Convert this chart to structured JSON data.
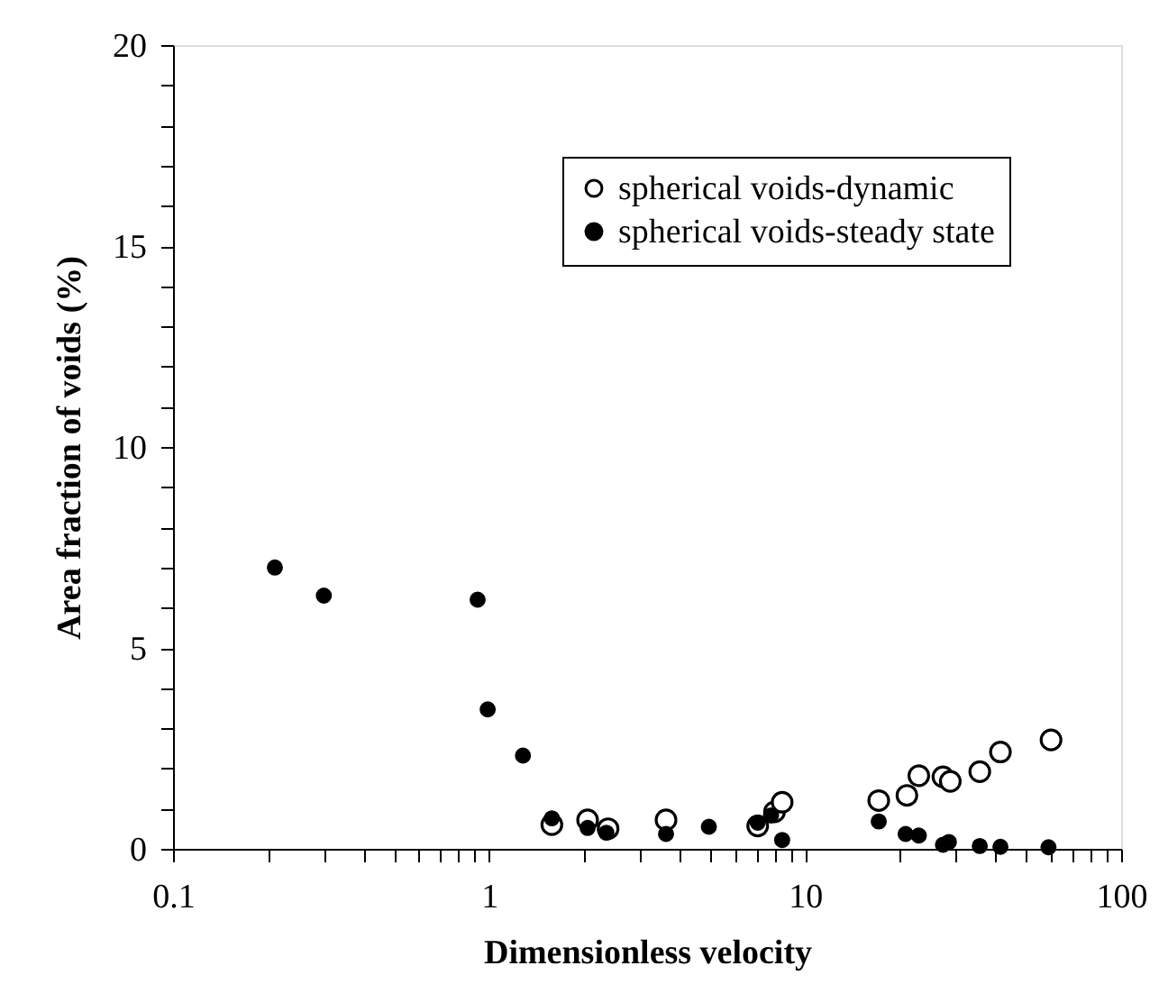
{
  "chart_data": {
    "type": "scatter",
    "xlabel": "Dimensionless  velocity",
    "ylabel": "Area fraction of voids (%)",
    "log": "x",
    "marker": "circle",
    "grid": false,
    "legend": "top right",
    "xlim": [
      0.1,
      100
    ],
    "xticks": [
      0.1,
      {
        "value": 0.2,
        "label": null
      },
      {
        "value": 0.3,
        "label": null
      },
      {
        "value": 0.4,
        "label": null
      },
      {
        "value": 0.5,
        "label": null
      },
      {
        "value": 0.6,
        "label": null
      },
      {
        "value": 0.7,
        "label": null
      },
      {
        "value": 0.8,
        "label": null
      },
      {
        "value": 0.9,
        "label": null
      },
      1,
      {
        "value": 2,
        "label": null
      },
      {
        "value": 3,
        "label": null
      },
      {
        "value": 4,
        "label": null
      },
      {
        "value": 5,
        "label": null
      },
      {
        "value": 6,
        "label": null
      },
      {
        "value": 7,
        "label": null
      },
      {
        "value": 8,
        "label": null
      },
      {
        "value": 9,
        "label": null
      },
      10,
      {
        "value": 20,
        "label": null
      },
      {
        "value": 30,
        "label": null
      },
      {
        "value": 40,
        "label": null
      },
      {
        "value": 50,
        "label": null
      },
      {
        "value": 60,
        "label": null
      },
      {
        "value": 70,
        "label": null
      },
      {
        "value": 80,
        "label": null
      },
      {
        "value": 90,
        "label": null
      },
      100
    ],
    "ylim": [
      0,
      20
    ],
    "yticks": [
      0,
      {
        "value": 1,
        "label": null
      },
      {
        "value": 2,
        "label": null
      },
      {
        "value": 3,
        "label": null
      },
      {
        "value": 4,
        "label": null
      },
      5,
      {
        "value": 6,
        "label": null
      },
      {
        "value": 7,
        "label": null
      },
      {
        "value": 8,
        "label": null
      },
      {
        "value": 9,
        "label": null
      },
      10,
      {
        "value": 11,
        "label": null
      },
      {
        "value": 12,
        "label": null
      },
      {
        "value": 13,
        "label": null
      },
      {
        "value": 14,
        "label": null
      },
      15,
      {
        "value": 16,
        "label": null
      },
      {
        "value": 17,
        "label": null
      },
      {
        "value": 18,
        "label": null
      },
      {
        "value": 19,
        "label": null
      },
      20
    ],
    "series": [
      {
        "name": "spherical voids-dynamic",
        "color": "#000000",
        "x": [
          1.58,
          2.05,
          2.38,
          3.63,
          7.08,
          8.0,
          8.46,
          17.1,
          21.0,
          22.9,
          27.3,
          28.8,
          35.7,
          41.5,
          60.0
        ],
        "values": [
          0.6,
          0.72,
          0.5,
          0.72,
          0.57,
          0.92,
          1.16,
          1.2,
          1.33,
          1.82,
          1.79,
          1.68,
          1.92,
          2.41,
          2.71
        ],
        "sizes": [
          1,
          1,
          1,
          1,
          1,
          1,
          1,
          1,
          1,
          1,
          1,
          1,
          1,
          1,
          1
        ]
      },
      {
        "name": "spherical voids-steady state",
        "color": "#000000",
        "x": [
          0.21,
          0.3,
          0.92,
          0.99,
          1.28,
          1.58,
          2.05,
          2.35,
          3.63,
          4.96,
          7.08,
          7.8,
          8.46,
          17.1,
          20.8,
          22.9,
          27.3,
          28.5,
          35.7,
          41.5,
          58.9
        ],
        "values": [
          7.0,
          6.3,
          6.2,
          3.47,
          2.32,
          0.76,
          0.52,
          0.4,
          0.37,
          0.55,
          0.65,
          0.83,
          0.22,
          0.68,
          0.37,
          0.33,
          0.1,
          0.17,
          0.07,
          0.05,
          0.04
        ],
        "sizes": [
          0.45,
          0.45,
          0.45,
          0.45,
          0.45,
          0.45,
          0.45,
          0.45,
          0.45,
          0.45,
          0.45,
          0.45,
          0.45,
          0.45,
          0.45,
          0.45,
          0.45,
          0.45,
          0.45,
          0.45,
          0.45
        ]
      }
    ]
  }
}
